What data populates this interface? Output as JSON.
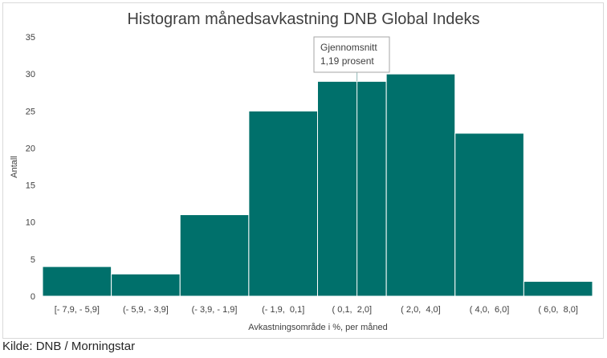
{
  "chart_data": {
    "type": "bar",
    "title": "Histogram månedsavkastning DNB Global Indeks",
    "xlabel": "Avkastningsområde i %, per måned",
    "ylabel": "Antall",
    "categories": [
      "[- 7,9, - 5,9]",
      "(- 5,9, - 3,9]",
      "(- 3,9, - 1,9]",
      "(- 1,9,  0,1]",
      "( 0,1,  2,0]",
      "( 2,0,  4,0]",
      "( 4,0,  6,0]",
      "( 6,0,  8,0]"
    ],
    "values": [
      4,
      3,
      11,
      25,
      29,
      30,
      22,
      2
    ],
    "ylim": [
      0,
      35
    ],
    "yticks": [
      0,
      5,
      10,
      15,
      20,
      25,
      30,
      35
    ],
    "grid": false,
    "bar_color": "#00706b",
    "annotation": {
      "line1": "Gjennomsnitt",
      "line2": "1,19 prosent",
      "x_value": 1.19
    }
  },
  "source": "Kilde: DNB / Morningstar"
}
